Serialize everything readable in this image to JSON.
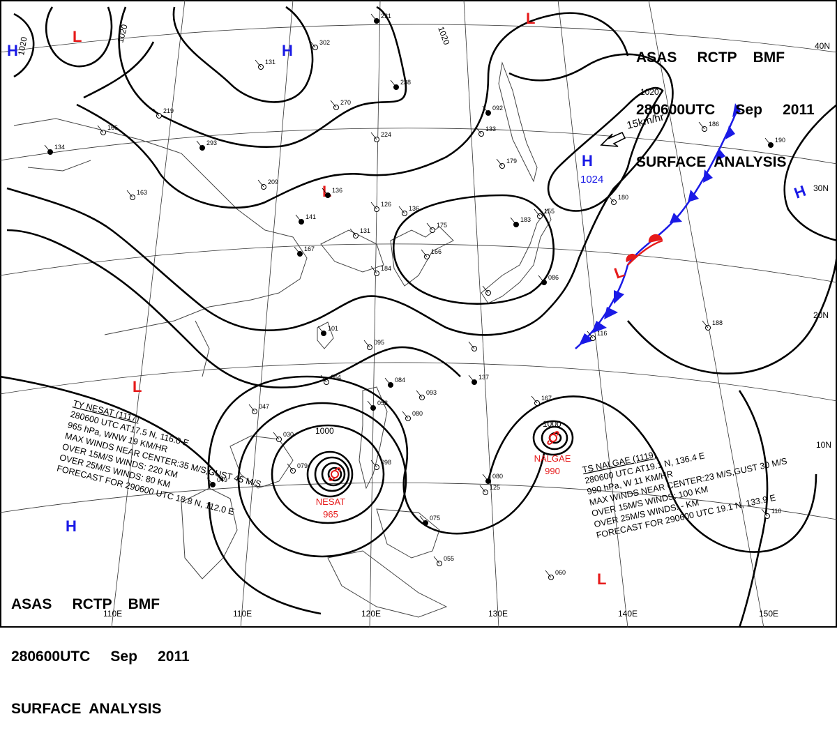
{
  "header": {
    "line1": "ASAS     RCTP    BMF",
    "line2": "280600UTC     Sep     2011",
    "line3": "SURFACE  ANALYSIS"
  },
  "longitudes": [
    "110E",
    "120E",
    "130E",
    "140E",
    "150E"
  ],
  "latitudes": [
    "10N",
    "20N",
    "30N",
    "40N"
  ],
  "isobar_labels": [
    "1020",
    "1020",
    "1020",
    "1020",
    "1000",
    "1000"
  ],
  "centers": {
    "high": [
      {
        "symbol": "H"
      },
      {
        "symbol": "H"
      },
      {
        "symbol": "H",
        "value": "1024"
      },
      {
        "symbol": "H"
      },
      {
        "symbol": "H"
      }
    ],
    "low": [
      {
        "symbol": "L"
      },
      {
        "symbol": "L"
      },
      {
        "symbol": "L"
      },
      {
        "symbol": "L"
      },
      {
        "symbol": "L"
      },
      {
        "symbol": "L"
      }
    ]
  },
  "motion_vector": "15km/hr",
  "typhoons": {
    "nesat": {
      "name": "NESAT",
      "pressure": "965",
      "lines": [
        "TY  NESAT  (1117)",
        "280600 UTC  AT17.5 N, 116.0 E",
        "965 hPa, WNW  19 KM/HR",
        "MAX WINDS NEAR CENTER:35 M/S,GUST 45 M/S",
        "OVER 15M/S WINDS: 220 KM",
        "OVER 25M/S WINDS: 80 KM",
        "FORECAST FOR 290600 UTC 18.8 N, 112.0 E"
      ]
    },
    "nalgae": {
      "name": "NALGAE",
      "pressure": "990",
      "lines": [
        "TS  NALGAE  (1119)",
        "280600 UTC  AT19.1 N, 136.4 E",
        "990 hPa, W  11 KM/HR",
        "MAX WINDS NEAR CENTER:23 M/S,GUST 30 M/S",
        "OVER 15M/S WINDS: 100 KM",
        "OVER 25M/S WINDS: - KM",
        "FORECAST FOR 290600 UTC 19.1 N, 133.9 E"
      ]
    }
  },
  "station_numbers": [
    "231",
    "302",
    "131",
    "238",
    "270",
    "219",
    "293",
    "224",
    "166",
    "134",
    "163",
    "209",
    "136",
    "126",
    "136",
    "141",
    "131",
    "175",
    "167",
    "166",
    "184",
    "101",
    "095",
    "064",
    "084",
    "093",
    "047",
    "053",
    "080",
    "030",
    "049",
    "079",
    "098",
    "075",
    "055",
    "060",
    "080",
    "125",
    "167",
    "092",
    "179",
    "133",
    "183",
    "155",
    "180",
    "190",
    "186",
    "188",
    "137",
    "116",
    "110",
    "086"
  ],
  "colors": {
    "high": "#1a1ae6",
    "low": "#e61a1a",
    "front": "#1a1ae6",
    "warm_front": "#e61a1a",
    "typhoon": "#e61a1a"
  }
}
